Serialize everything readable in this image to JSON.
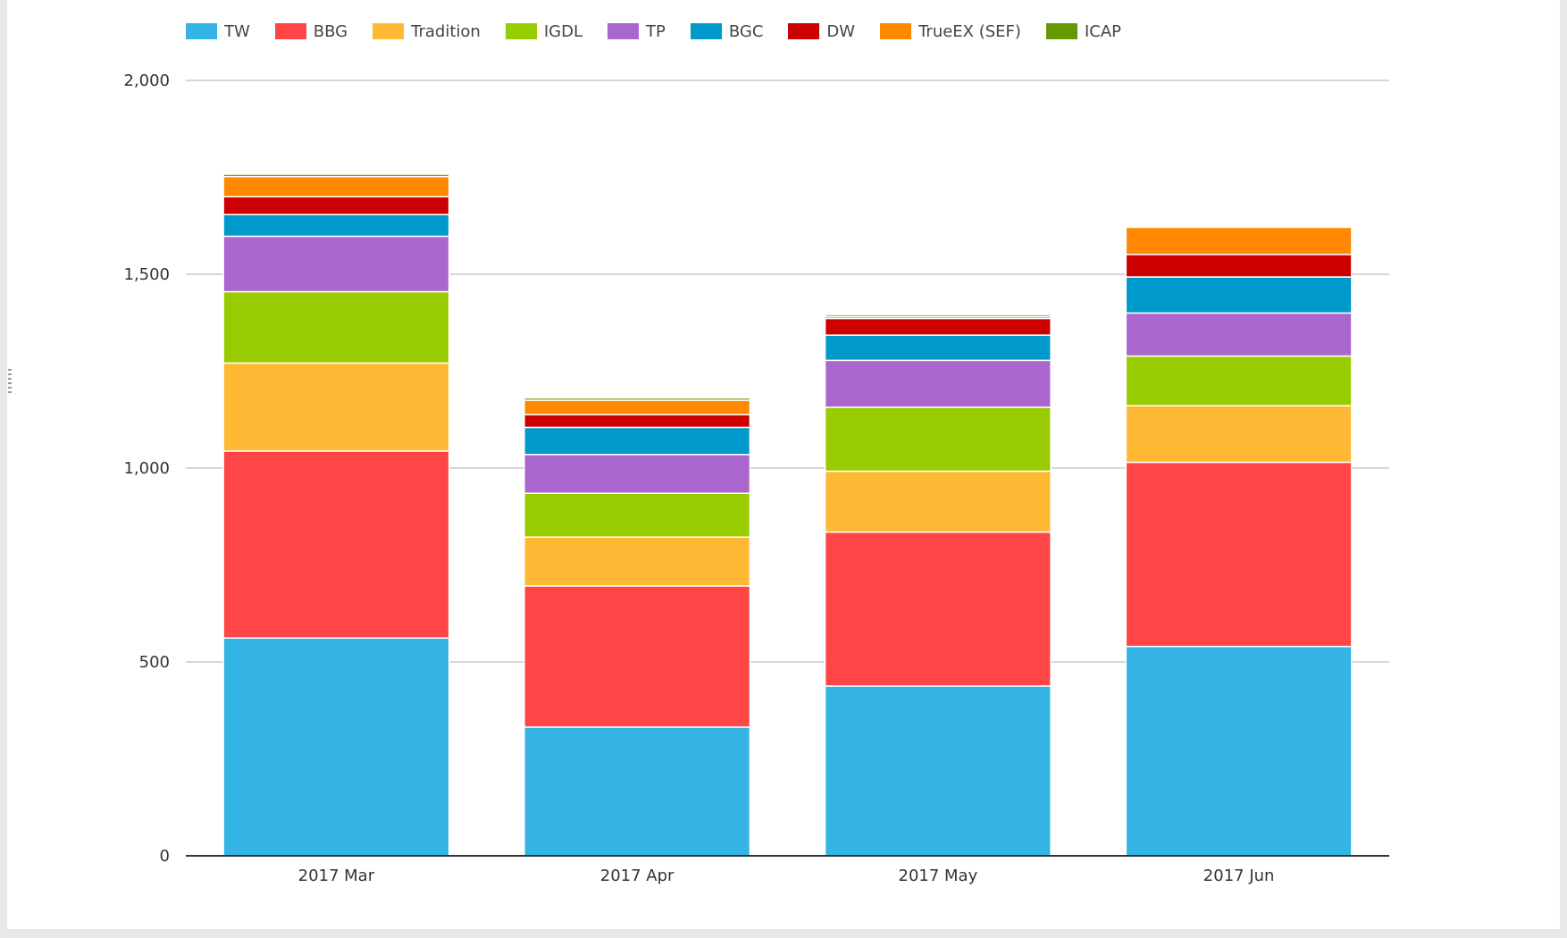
{
  "colors": {
    "TW": "#33b4e3",
    "BBG": "#ff4545",
    "Tradition": "#ffb833",
    "IGDL": "#99cc00",
    "TP": "#aa66cc",
    "BGC": "#0099cc",
    "DW": "#cc0000",
    "TrueEX (SEF)": "#ff8800",
    "ICAP": "#669900"
  },
  "chart_data": {
    "type": "bar",
    "stacked": true,
    "categories": [
      "2017 Mar",
      "2017 Apr",
      "2017 May",
      "2017 Jun"
    ],
    "series": [
      {
        "name": "TW",
        "values": [
          562,
          332,
          438,
          540
        ]
      },
      {
        "name": "BBG",
        "values": [
          482,
          364,
          397,
          475
        ]
      },
      {
        "name": "Tradition",
        "values": [
          227,
          126,
          157,
          146
        ]
      },
      {
        "name": "IGDL",
        "values": [
          184,
          113,
          165,
          128
        ]
      },
      {
        "name": "TP",
        "values": [
          143,
          100,
          121,
          111
        ]
      },
      {
        "name": "BGC",
        "values": [
          56,
          70,
          65,
          93
        ]
      },
      {
        "name": "DW",
        "values": [
          46,
          33,
          43,
          58
        ]
      },
      {
        "name": "TrueEX (SEF)",
        "values": [
          52,
          37,
          5,
          70
        ]
      },
      {
        "name": "ICAP",
        "values": [
          6,
          6,
          5,
          0
        ]
      }
    ],
    "yticks": [
      "0",
      "500",
      "1,000",
      "1,500",
      "2,000"
    ],
    "ylim": [
      0,
      2000
    ],
    "legend_position": "top-left",
    "grid": true
  }
}
